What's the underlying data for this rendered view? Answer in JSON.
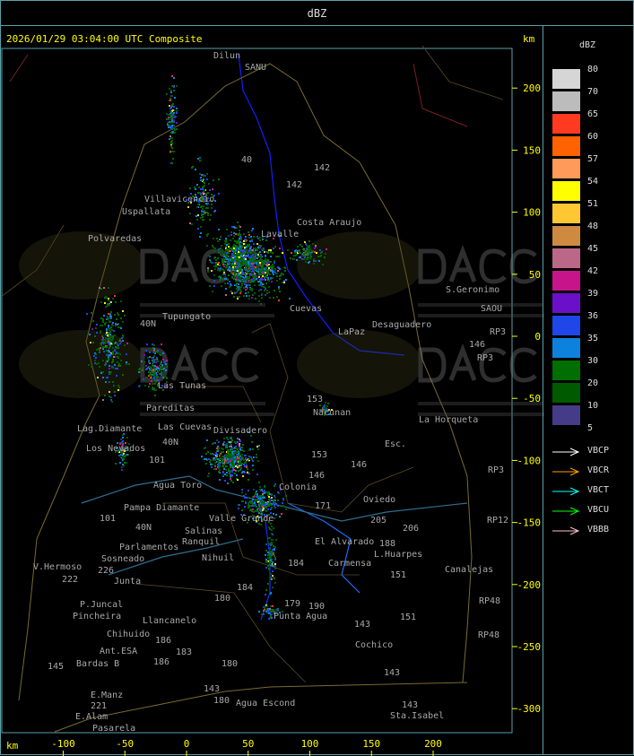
{
  "window_title": "dBZ",
  "map": {
    "timestamp_title": "2026/01/29 03:04:00 UTC Composite",
    "y_unit": "km",
    "x_unit": "km",
    "x_ticks": [
      "-100",
      "-50",
      "0",
      "50",
      "100",
      "150",
      "200"
    ],
    "y_ticks": [
      "200",
      "150",
      "100",
      "50",
      "0",
      "-50",
      "-100",
      "-150",
      "-200",
      "-250",
      "-300"
    ],
    "watermark": {
      "brand": "DACC",
      "line1": "Dirección de Agricultura",
      "line2": "y Contingencias Climáticas",
      "url": "http://www.contingencias.mendoza.gov.ar"
    },
    "place_labels": [
      "Dilun",
      "SANU",
      "Uspallata",
      "Villavicencio",
      "Polvaredas",
      "Lavalle",
      "Costa Araujo",
      "S.Geronimo",
      "SAOU",
      "Desaguadero",
      "LaPaz",
      "Cuevas",
      "Tupungato",
      "Nacunan",
      "La Horqueta",
      "Pareditas",
      "Las Tunas",
      "Las Cuevas",
      "Lag.Diamante",
      "Los Nevados",
      "Divisadero",
      "Agua Toro",
      "Pampa Diamante",
      "Salinas",
      "Parlamentos",
      "Sosneado",
      "Valle Grande",
      "Nihuil",
      "El Alvarado",
      "Carmensa",
      "L.Huarpes",
      "Canalejas",
      "Oviedo",
      "V.Hermoso",
      "Junta",
      "P.Juncal",
      "Pincheira",
      "Llancanelo",
      "Punta Agua",
      "Chihuido",
      "Ant.ESA",
      "Bardas B",
      "Cochico",
      "E.Manz",
      "E.Alam",
      "Pasarela",
      "Agua Escond",
      "Sta.Isabel",
      "Ranquil",
      "Esc.",
      "Colonia"
    ],
    "route_labels": [
      "40",
      "142",
      "142",
      "153",
      "153",
      "146",
      "146",
      "171",
      "205",
      "206",
      "188",
      "151",
      "151",
      "184",
      "184",
      "180",
      "180",
      "179",
      "190",
      "143",
      "143",
      "143",
      "143",
      "183",
      "186",
      "186",
      "145",
      "221",
      "222",
      "226",
      "RP3",
      "RP3",
      "RP12",
      "RP48",
      "RP48",
      "RP3",
      "146",
      "40N",
      "40N",
      "40N",
      "101",
      "101",
      "180"
    ]
  },
  "legend": {
    "unit": "dBZ",
    "levels": [
      {
        "label": "80",
        "color": "#d6d6d6"
      },
      {
        "label": "70",
        "color": "#bcbcbc"
      },
      {
        "label": "65",
        "color": "#ff3a20"
      },
      {
        "label": "60",
        "color": "#ff6200"
      },
      {
        "label": "57",
        "color": "#ff9a5a"
      },
      {
        "label": "54",
        "color": "#ffff00"
      },
      {
        "label": "51",
        "color": "#ffc832"
      },
      {
        "label": "48",
        "color": "#cd8a40"
      },
      {
        "label": "45",
        "color": "#bb6888"
      },
      {
        "label": "42",
        "color": "#c8148a"
      },
      {
        "label": "39",
        "color": "#6a10c8"
      },
      {
        "label": "36",
        "color": "#1e46e8"
      },
      {
        "label": "35",
        "color": "#0c82dc"
      },
      {
        "label": "30",
        "color": "#006e00"
      },
      {
        "label": "20",
        "color": "#005a00"
      },
      {
        "label": "10",
        "color": "#443c88"
      },
      {
        "label": "5",
        "color": ""
      }
    ],
    "radars": [
      {
        "label": "VBCP",
        "color": "#ffffff"
      },
      {
        "label": "VBCR",
        "color": "#ffa000"
      },
      {
        "label": "VBCT",
        "color": "#00ffff"
      },
      {
        "label": "VBCU",
        "color": "#00ff00"
      },
      {
        "label": "VBBB",
        "color": "#ffc0cb"
      }
    ]
  }
}
